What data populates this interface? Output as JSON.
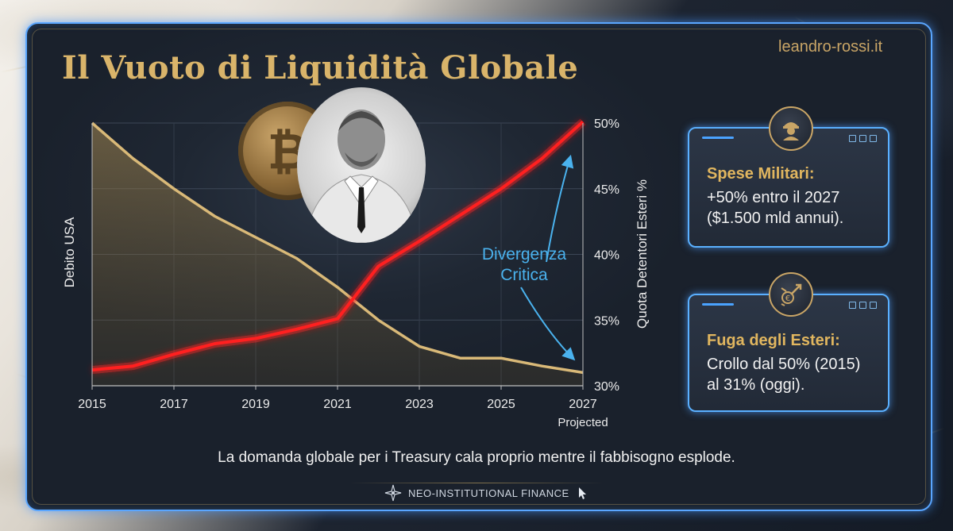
{
  "page": {
    "title": "Il Vuoto di Liquidità Globale",
    "website": "leandro-rossi.it",
    "caption": "La domanda globale per i Treasury cala proprio mentre il fabbisogno esplode.",
    "brand": "NEO-INSTITUTIONAL FINANCE"
  },
  "chart_data": {
    "type": "line",
    "x": [
      2015,
      2016,
      2017,
      2018,
      2019,
      2020,
      2021,
      2022,
      2023,
      2024,
      2025,
      2026,
      2027
    ],
    "x_tick_labels": [
      "2015",
      "2017",
      "2019",
      "2021",
      "2023",
      "2025",
      "2027"
    ],
    "x_annotation": "Projected",
    "y_left_label": "Debito USA",
    "y_right_label": "Quota Detentori Esteri %",
    "y_right_ticks": [
      "50%",
      "45%",
      "40%",
      "35%",
      "30%"
    ],
    "y_right_lim": [
      30,
      50
    ],
    "series": [
      {
        "values": [
          50,
          47.3,
          45,
          42.9,
          41.3,
          39.7,
          37.5,
          35,
          33,
          32.1,
          32.1,
          31.5,
          31
        ],
        "color": "#d9b978",
        "filled": true
      },
      {
        "values": [
          31.2,
          31.5,
          32.4,
          33.2,
          33.6,
          34.3,
          35.1,
          39.1,
          41,
          43,
          45,
          47.3,
          50.1
        ],
        "color": "#ff2020",
        "glow": true
      }
    ],
    "annotation": {
      "text": "Divergenza Critica",
      "color": "#4ab2ee"
    },
    "grid": true
  },
  "cards": [
    {
      "heading": "Spese Militari:",
      "lines": [
        "+50% entro il 2027",
        "($1.500 mld annui)."
      ],
      "icon": "soldier-icon"
    },
    {
      "heading": "Fuga degli Esteri:",
      "lines": [
        "Crollo dal 50% (2015)",
        "al 31% (oggi)."
      ],
      "icon": "capital-flight-icon"
    }
  ],
  "colors": {
    "accent_gold": "#d9b46a",
    "accent_blue": "#5aa6ff",
    "red_line": "#ff2020"
  }
}
